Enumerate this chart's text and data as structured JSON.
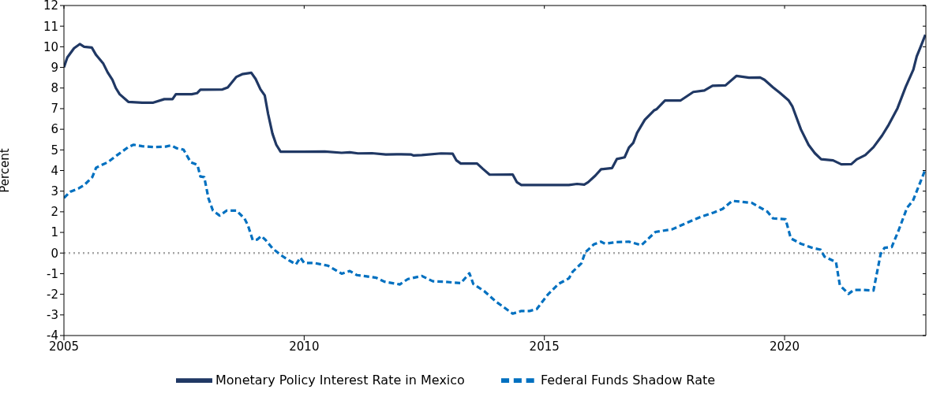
{
  "chart_data": {
    "type": "line",
    "ylabel": "Percent",
    "xlim": [
      2005,
      2022.94
    ],
    "xticks": [
      2005,
      2010,
      2015,
      2020
    ],
    "ylim": [
      -4,
      12
    ],
    "yticks": [
      -4,
      -3,
      -2,
      -1,
      0,
      1,
      2,
      3,
      4,
      5,
      6,
      7,
      8,
      9,
      10,
      11,
      12
    ],
    "legend": "bottom",
    "marker": "none",
    "ref_lines": [
      {
        "axis": "y",
        "value": 0,
        "color": "#a6a6a6",
        "line_style": "dotted"
      }
    ],
    "series": [
      {
        "name": "Monetary Policy Interest Rate in Mexico",
        "color": "#203864",
        "line_style": "solid",
        "x": [
          2005.0,
          2005.07,
          2005.21,
          2005.33,
          2005.42,
          2005.58,
          2005.67,
          2005.82,
          2005.91,
          2006.01,
          2006.08,
          2006.16,
          2006.34,
          2006.63,
          2006.86,
          2007.09,
          2007.26,
          2007.33,
          2007.66,
          2007.77,
          2007.84,
          2008.3,
          2008.41,
          2008.59,
          2008.71,
          2008.9,
          2008.99,
          2009.09,
          2009.18,
          2009.25,
          2009.34,
          2009.42,
          2009.51,
          2009.97,
          2010.43,
          2010.78,
          2010.95,
          2011.12,
          2011.41,
          2011.7,
          2011.93,
          2012.22,
          2012.28,
          2012.45,
          2012.85,
          2013.09,
          2013.17,
          2013.26,
          2013.6,
          2013.72,
          2013.86,
          2014.34,
          2014.43,
          2014.52,
          2015.51,
          2015.68,
          2015.83,
          2015.91,
          2016.06,
          2016.18,
          2016.41,
          2016.51,
          2016.67,
          2016.76,
          2016.85,
          2016.93,
          2017.09,
          2017.28,
          2017.34,
          2017.51,
          2017.83,
          2018.1,
          2018.33,
          2018.5,
          2018.77,
          2019.0,
          2019.26,
          2019.49,
          2019.58,
          2019.76,
          2019.9,
          2020.08,
          2020.16,
          2020.34,
          2020.5,
          2020.63,
          2020.76,
          2021.01,
          2021.18,
          2021.39,
          2021.5,
          2021.68,
          2021.85,
          2022.03,
          2022.17,
          2022.35,
          2022.52,
          2022.68,
          2022.75,
          2022.84,
          2022.93
        ],
        "values": [
          9.0,
          9.48,
          9.93,
          10.13,
          10.0,
          9.96,
          9.6,
          9.18,
          8.76,
          8.4,
          8.0,
          7.7,
          7.33,
          7.29,
          7.29,
          7.46,
          7.46,
          7.7,
          7.7,
          7.75,
          7.92,
          7.93,
          8.03,
          8.54,
          8.67,
          8.74,
          8.44,
          7.94,
          7.64,
          6.74,
          5.79,
          5.25,
          4.91,
          4.91,
          4.92,
          4.86,
          4.88,
          4.83,
          4.84,
          4.78,
          4.79,
          4.78,
          4.73,
          4.75,
          4.83,
          4.82,
          4.49,
          4.34,
          4.34,
          4.08,
          3.8,
          3.81,
          3.43,
          3.3,
          3.3,
          3.35,
          3.32,
          3.43,
          3.75,
          4.06,
          4.12,
          4.56,
          4.64,
          5.11,
          5.34,
          5.83,
          6.46,
          6.91,
          6.98,
          7.39,
          7.39,
          7.81,
          7.88,
          8.11,
          8.13,
          8.59,
          8.5,
          8.51,
          8.4,
          8.03,
          7.77,
          7.41,
          7.12,
          5.99,
          5.24,
          4.84,
          4.55,
          4.49,
          4.3,
          4.31,
          4.54,
          4.75,
          5.13,
          5.7,
          6.23,
          7.02,
          8.05,
          8.89,
          9.53,
          10.05,
          10.58
        ]
      },
      {
        "name": "Federal Funds Shadow Rate",
        "color": "#0070c0",
        "line_style": "dashed",
        "x": [
          2005.0,
          2005.13,
          2005.3,
          2005.42,
          2005.59,
          2005.67,
          2005.91,
          2006.11,
          2006.34,
          2006.45,
          2006.63,
          2006.86,
          2007.12,
          2007.23,
          2007.35,
          2007.49,
          2007.64,
          2007.78,
          2007.84,
          2007.92,
          2008.01,
          2008.1,
          2008.24,
          2008.39,
          2008.59,
          2008.76,
          2008.83,
          2008.93,
          2009.02,
          2009.11,
          2009.19,
          2009.34,
          2009.51,
          2009.68,
          2009.83,
          2009.92,
          2010.0,
          2010.2,
          2010.49,
          2010.78,
          2010.95,
          2011.1,
          2011.3,
          2011.5,
          2011.67,
          2011.99,
          2012.16,
          2012.45,
          2012.68,
          2012.91,
          2013.26,
          2013.44,
          2013.52,
          2013.75,
          2014.0,
          2014.11,
          2014.34,
          2014.52,
          2014.69,
          2014.84,
          2015.07,
          2015.3,
          2015.51,
          2015.59,
          2015.77,
          2015.85,
          2016.03,
          2016.18,
          2016.26,
          2016.5,
          2016.76,
          2017.02,
          2017.31,
          2017.66,
          2017.98,
          2018.24,
          2018.53,
          2018.71,
          2018.91,
          2019.32,
          2019.64,
          2019.76,
          2020.02,
          2020.13,
          2020.34,
          2020.57,
          2020.75,
          2020.83,
          2021.07,
          2021.15,
          2021.33,
          2021.44,
          2021.65,
          2021.85,
          2022.0,
          2022.08,
          2022.23,
          2022.37,
          2022.55,
          2022.67,
          2022.93
        ],
        "values": [
          2.67,
          2.97,
          3.13,
          3.29,
          3.68,
          4.14,
          4.4,
          4.75,
          5.14,
          5.25,
          5.18,
          5.14,
          5.16,
          5.22,
          5.08,
          5.01,
          4.4,
          4.27,
          3.71,
          3.68,
          2.64,
          2.06,
          1.82,
          2.06,
          2.06,
          1.67,
          1.34,
          0.63,
          0.65,
          0.82,
          0.65,
          0.23,
          -0.09,
          -0.35,
          -0.55,
          -0.22,
          -0.48,
          -0.48,
          -0.61,
          -1.0,
          -0.87,
          -1.07,
          -1.13,
          -1.2,
          -1.39,
          -1.52,
          -1.26,
          -1.11,
          -1.37,
          -1.39,
          -1.46,
          -0.98,
          -1.5,
          -1.85,
          -2.37,
          -2.55,
          -2.94,
          -2.81,
          -2.81,
          -2.72,
          -2.02,
          -1.49,
          -1.23,
          -0.9,
          -0.5,
          0.03,
          0.42,
          0.55,
          0.45,
          0.53,
          0.55,
          0.38,
          1.02,
          1.15,
          1.48,
          1.74,
          1.97,
          2.14,
          2.53,
          2.43,
          2.01,
          1.68,
          1.64,
          0.71,
          0.45,
          0.26,
          0.16,
          -0.17,
          -0.44,
          -1.56,
          -1.98,
          -1.79,
          -1.79,
          -1.82,
          -0.04,
          0.25,
          0.29,
          1.08,
          2.2,
          2.53,
          4.05
        ]
      }
    ]
  }
}
